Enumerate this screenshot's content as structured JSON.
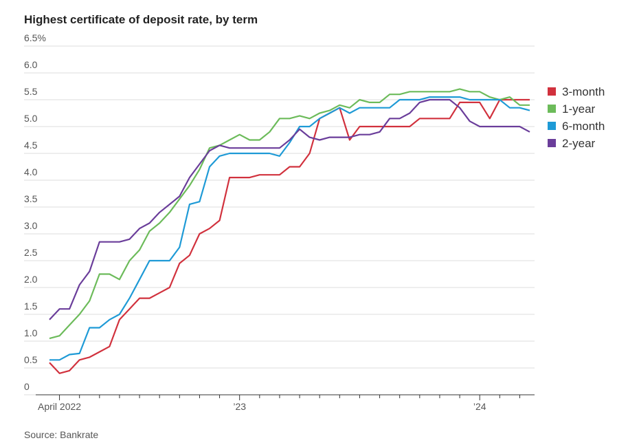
{
  "chart_data": {
    "type": "line",
    "title": "Highest certificate of deposit rate, by term",
    "source": "Source: Bankrate",
    "categories": [
      null,
      "April 2022",
      null,
      null,
      null,
      null,
      null,
      null,
      null,
      null,
      null,
      null,
      null,
      null,
      null,
      null,
      null,
      null,
      null,
      "’23",
      null,
      null,
      null,
      null,
      null,
      null,
      null,
      null,
      null,
      null,
      null,
      null,
      null,
      null,
      null,
      null,
      null,
      null,
      null,
      null,
      null,
      null,
      null,
      "’24",
      null,
      null,
      null,
      null,
      null
    ],
    "series": [
      {
        "name": "3-month",
        "color": "#d1313d",
        "values": [
          0.6,
          0.4,
          0.45,
          0.65,
          0.7,
          0.8,
          0.9,
          1.4,
          1.6,
          1.8,
          1.8,
          1.9,
          2.0,
          2.45,
          2.6,
          3.0,
          3.1,
          3.25,
          4.05,
          4.05,
          4.05,
          4.1,
          4.1,
          4.1,
          4.25,
          4.25,
          4.5,
          5.15,
          5.25,
          5.35,
          4.75,
          5.0,
          5.0,
          5.0,
          5.0,
          5.0,
          5.0,
          5.15,
          5.15,
          5.15,
          5.15,
          5.45,
          5.45,
          5.45,
          5.15,
          5.5,
          5.5,
          5.5,
          5.5
        ]
      },
      {
        "name": "1-year",
        "color": "#6cbb5a",
        "values": [
          1.05,
          1.1,
          1.3,
          1.5,
          1.75,
          2.25,
          2.25,
          2.15,
          2.5,
          2.7,
          3.05,
          3.2,
          3.4,
          3.65,
          3.9,
          4.2,
          4.6,
          4.65,
          4.75,
          4.85,
          4.75,
          4.75,
          4.9,
          5.15,
          5.15,
          5.2,
          5.15,
          5.25,
          5.3,
          5.4,
          5.35,
          5.5,
          5.45,
          5.45,
          5.6,
          5.6,
          5.65,
          5.65,
          5.65,
          5.65,
          5.65,
          5.7,
          5.65,
          5.65,
          5.55,
          5.5,
          5.55,
          5.4,
          5.4
        ]
      },
      {
        "name": "6-month",
        "color": "#1e9ad6",
        "values": [
          0.65,
          0.65,
          0.75,
          0.77,
          1.25,
          1.25,
          1.4,
          1.5,
          1.8,
          2.15,
          2.5,
          2.5,
          2.5,
          2.75,
          3.55,
          3.6,
          4.25,
          4.45,
          4.5,
          4.5,
          4.5,
          4.5,
          4.5,
          4.45,
          4.7,
          5.0,
          5.0,
          5.15,
          5.25,
          5.35,
          5.25,
          5.35,
          5.35,
          5.35,
          5.35,
          5.5,
          5.5,
          5.5,
          5.55,
          5.55,
          5.55,
          5.55,
          5.5,
          5.5,
          5.5,
          5.5,
          5.35,
          5.35,
          5.3
        ]
      },
      {
        "name": "2-year",
        "color": "#6a3d9a",
        "values": [
          1.4,
          1.6,
          1.6,
          2.05,
          2.3,
          2.85,
          2.85,
          2.85,
          2.9,
          3.1,
          3.2,
          3.4,
          3.55,
          3.7,
          4.05,
          4.3,
          4.55,
          4.65,
          4.6,
          4.6,
          4.6,
          4.6,
          4.6,
          4.6,
          4.75,
          4.95,
          4.8,
          4.75,
          4.8,
          4.8,
          4.8,
          4.85,
          4.85,
          4.9,
          5.15,
          5.15,
          5.25,
          5.45,
          5.5,
          5.5,
          5.5,
          5.35,
          5.1,
          5.0,
          5.0,
          5.0,
          5.0,
          5.0,
          4.9
        ]
      }
    ],
    "ylim": [
      0,
      6.5
    ],
    "yticks": [
      0,
      0.5,
      {
        "value": 1,
        "label": "1.0"
      },
      1.5,
      {
        "value": 2,
        "label": "2.0"
      },
      2.5,
      {
        "value": 3,
        "label": "3.0"
      },
      3.5,
      {
        "value": 4,
        "label": "4.0"
      },
      4.5,
      {
        "value": 5,
        "label": "5.0"
      },
      5.5,
      {
        "value": 6,
        "label": "6.0"
      },
      {
        "value": 6.5,
        "label": "6.5%"
      }
    ],
    "grid": true,
    "legend": "right"
  }
}
